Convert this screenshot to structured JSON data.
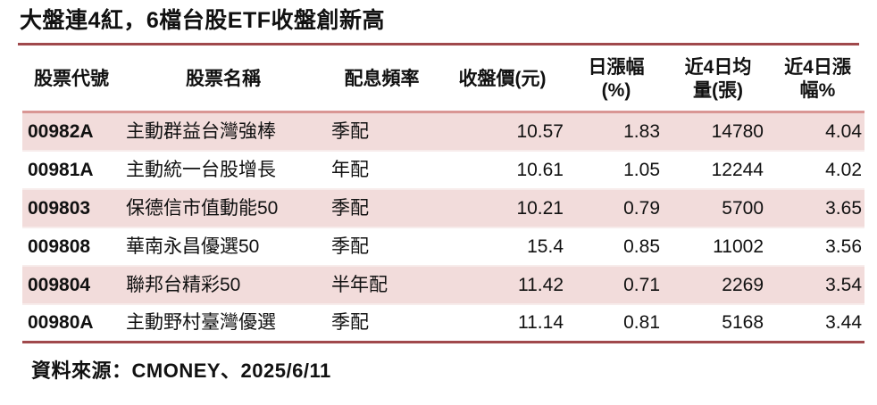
{
  "title": "大盤連4紅，6檔台股ETF收盤創新高",
  "source_note": "資料來源：CMONEY、2025/6/11",
  "colors": {
    "dark_rule": "#A0494C",
    "header_rule": "#D99694",
    "row_alt_fill": "#F2DCDB",
    "text": "#111111"
  },
  "chart_data": {
    "type": "table",
    "title": "大盤連4紅，6檔台股ETF收盤創新高",
    "columns": [
      "股票代號",
      "股票名稱",
      "配息頻率",
      "收盤價(元)",
      "日漲幅\n(%)",
      "近4日均\n量(張)",
      "近4日漲\n幅%"
    ],
    "rows": [
      [
        "00982A",
        "主動群益台灣強棒",
        "季配",
        "10.57",
        "1.83",
        "14780",
        "4.04"
      ],
      [
        "00981A",
        "主動統一台股增長",
        "年配",
        "10.61",
        "1.05",
        "12244",
        "4.02"
      ],
      [
        "009803",
        "保德信市值動能50",
        "季配",
        "10.21",
        "0.79",
        "5700",
        "3.65"
      ],
      [
        "009808",
        "華南永昌優選50",
        "季配",
        "15.4",
        "0.85",
        "11002",
        "3.56"
      ],
      [
        "009804",
        "聯邦台精彩50",
        "半年配",
        "11.42",
        "0.71",
        "2269",
        "3.54"
      ],
      [
        "00980A",
        "主動野村臺灣優選",
        "季配",
        "11.14",
        "0.81",
        "5168",
        "3.44"
      ]
    ],
    "layout": {
      "banded_rows": true,
      "band_fill_rows": [
        1,
        3,
        5
      ],
      "numeric_columns_right_aligned": [
        3,
        4,
        5,
        6
      ]
    }
  }
}
